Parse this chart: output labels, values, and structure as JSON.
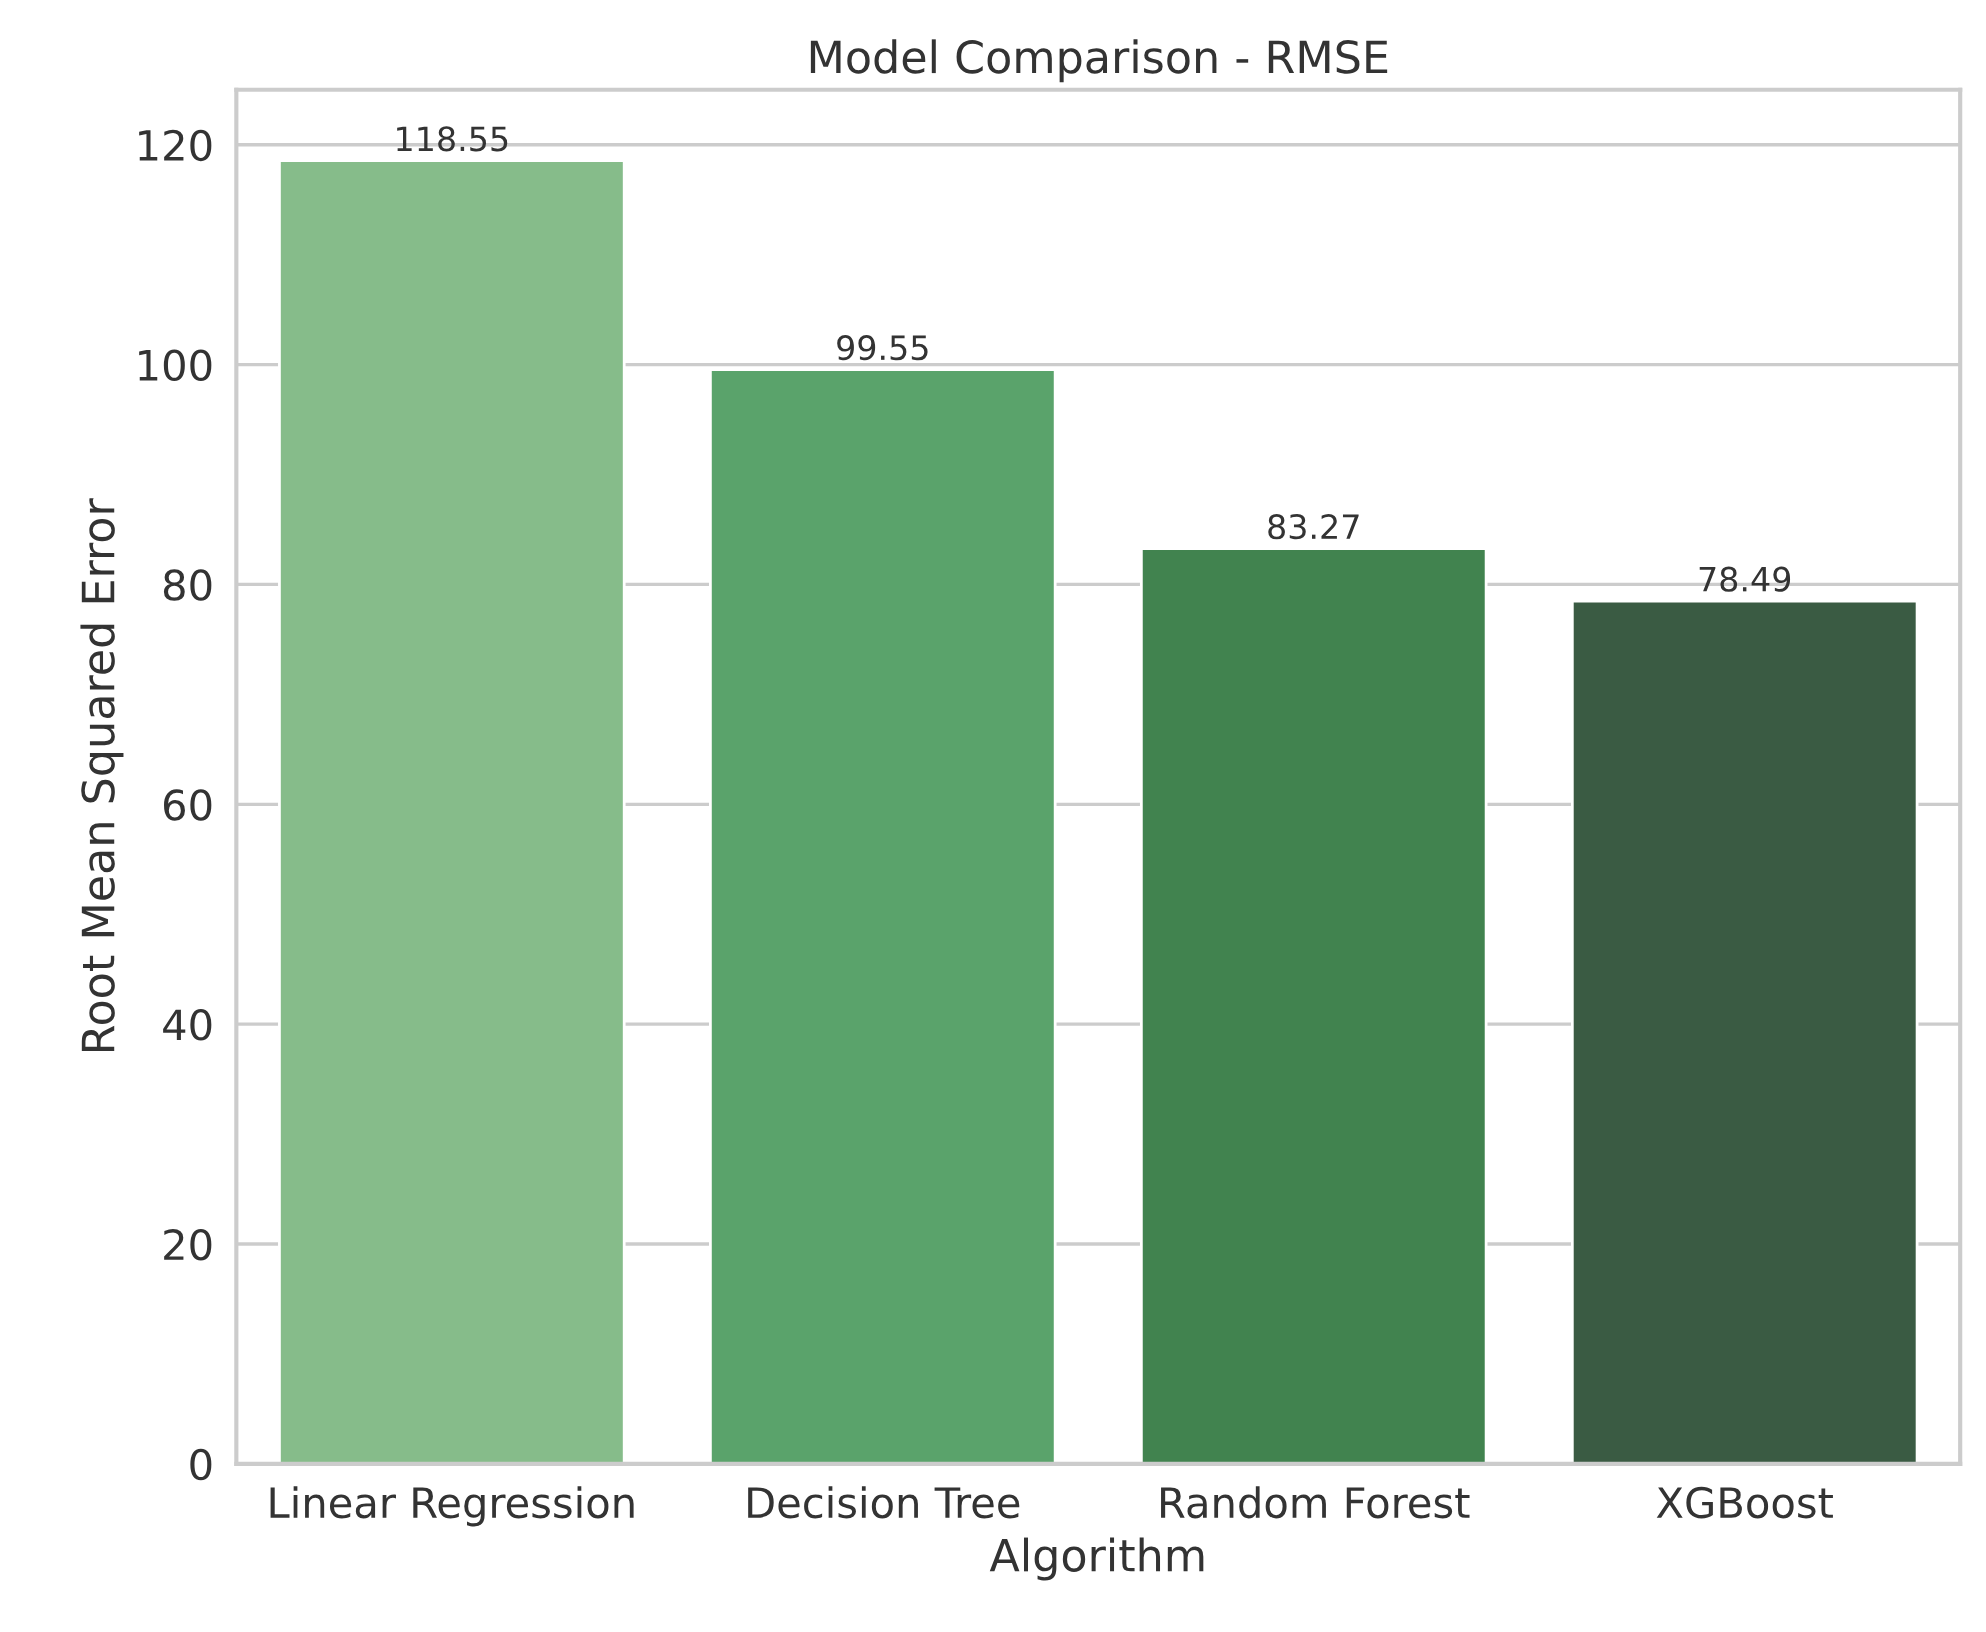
{
  "chart_data": {
    "type": "bar",
    "title": "Model Comparison - RMSE",
    "xlabel": "Algorithm",
    "ylabel": "Root Mean Squared Error",
    "categories": [
      "Linear Regression",
      "Decision Tree",
      "Random Forest",
      "XGBoost"
    ],
    "values": [
      118.55,
      99.55,
      83.27,
      78.49
    ],
    "colors": [
      "#86bc8a",
      "#5aa36b",
      "#41834f",
      "#3a5b43"
    ],
    "value_labels": [
      "118.55",
      "99.55",
      "83.27",
      "78.49"
    ],
    "ylim": [
      0,
      125
    ],
    "yticks": [
      0,
      20,
      40,
      60,
      80,
      100,
      120
    ],
    "grid": "y",
    "legend": false
  }
}
